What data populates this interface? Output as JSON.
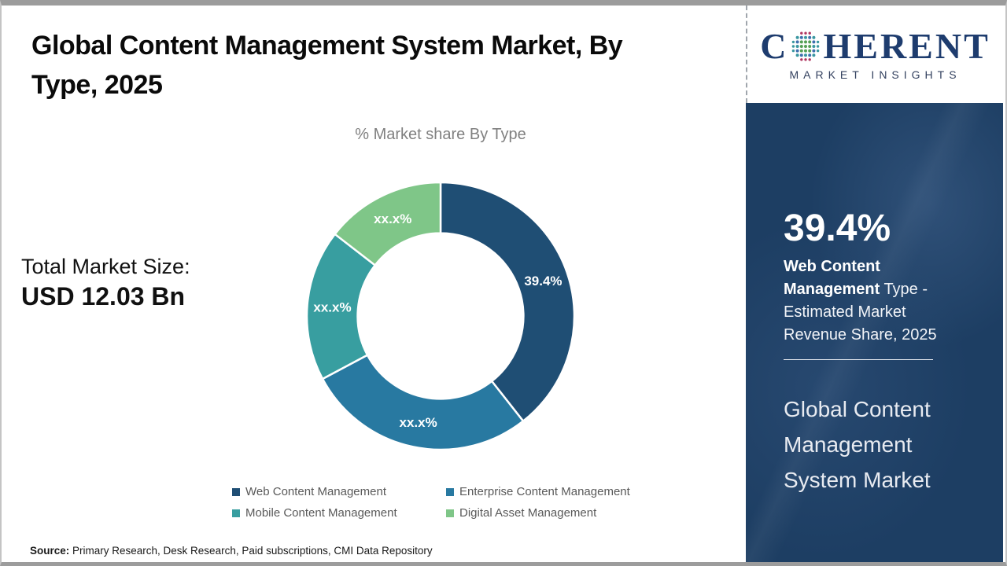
{
  "title_line1": "Global Content Management System Market, By",
  "title_line2": "Type, 2025",
  "subtitle": "% Market share By Type",
  "total_market": {
    "label": "Total Market Size:",
    "value": "USD 12.03 Bn"
  },
  "source": {
    "label": "Source:",
    "text": " Primary Research, Desk Research, Paid subscriptions, CMI Data Repository"
  },
  "logo": {
    "letter_c": "C",
    "word_rest": "HERENT",
    "tagline": "MARKET INSIGHTS",
    "navy": "#1e3c6e"
  },
  "sidebar": {
    "stat_value": "39.4%",
    "stat_bold": "Web Content Management",
    "stat_rest": " Type - Estimated Market Revenue Share, 2025",
    "market_title": "Global Content Management System Market",
    "bg_color": "#1d3e63"
  },
  "chart_data": {
    "type": "donut",
    "title": "% Market share By Type",
    "categories": [
      "Web Content Management",
      "Enterprise Content Management",
      "Mobile Content Management",
      "Digital Asset Management"
    ],
    "values": [
      39.4,
      27.8,
      18.3,
      14.5
    ],
    "labels": [
      "39.4%",
      "xx.x%",
      "xx.x%",
      "xx.x%"
    ],
    "colors": [
      "#1f4e74",
      "#2879a1",
      "#389ea0",
      "#7fc688"
    ],
    "value_note": "only first slice value (39.4%) is displayed; other slice sizes estimated from arc angles, labels masked as xx.x%",
    "start_angle_deg": 0,
    "direction": "clockwise",
    "inner_radius_ratio": 0.62,
    "label_color": "#ffffff",
    "separator_color": "#ffffff",
    "legend_position": "bottom"
  }
}
